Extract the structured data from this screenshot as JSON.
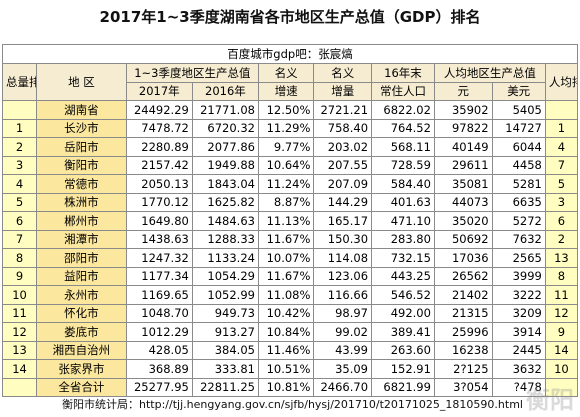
{
  "title": "2017年1~3季度湖南省各市地区生产总值（GDP）排名",
  "source_note": "百度城市gdp吧：张宸熇",
  "headers": {
    "rank": "总量排名",
    "region": "地 区",
    "gdp_group": "1~3季度地区生产总值",
    "y2017": "2017年",
    "y2016": "2016年",
    "nominal_growth_top": "名义",
    "nominal_growth_bottom": "增速",
    "nominal_incr_top": "名义",
    "nominal_incr_bottom": "增量",
    "pop_top": "16年末",
    "pop_bottom": "常住人口",
    "percap_group": "人均地区生产总值",
    "yuan": "元",
    "usd": "美元",
    "percap_rank": "人均排名"
  },
  "rows": [
    {
      "rank": "",
      "name": "湖南省",
      "gdp2017": "24492.29",
      "gdp2016": "21771.08",
      "growth": "12.50%",
      "incr": "2721.21",
      "pop": "6822.02",
      "yuan": "35902",
      "usd": "5405",
      "pcrank": ""
    },
    {
      "rank": "1",
      "name": "长沙市",
      "gdp2017": "7478.72",
      "gdp2016": "6720.32",
      "growth": "11.29%",
      "incr": "758.40",
      "pop": "764.52",
      "yuan": "97822",
      "usd": "14727",
      "pcrank": "1"
    },
    {
      "rank": "2",
      "name": "岳阳市",
      "gdp2017": "2280.89",
      "gdp2016": "2077.86",
      "growth": "9.77%",
      "incr": "203.02",
      "pop": "568.11",
      "yuan": "40149",
      "usd": "6044",
      "pcrank": "4"
    },
    {
      "rank": "3",
      "name": "衡阳市",
      "gdp2017": "2157.42",
      "gdp2016": "1949.88",
      "growth": "10.64%",
      "incr": "207.55",
      "pop": "728.59",
      "yuan": "29611",
      "usd": "4458",
      "pcrank": "7"
    },
    {
      "rank": "4",
      "name": "常德市",
      "gdp2017": "2050.13",
      "gdp2016": "1843.04",
      "growth": "11.24%",
      "incr": "207.09",
      "pop": "584.40",
      "yuan": "35081",
      "usd": "5281",
      "pcrank": "5"
    },
    {
      "rank": "5",
      "name": "株洲市",
      "gdp2017": "1770.12",
      "gdp2016": "1625.82",
      "growth": "8.87%",
      "incr": "144.29",
      "pop": "401.63",
      "yuan": "44073",
      "usd": "6635",
      "pcrank": "3"
    },
    {
      "rank": "6",
      "name": "郴州市",
      "gdp2017": "1649.80",
      "gdp2016": "1484.63",
      "growth": "11.13%",
      "incr": "165.17",
      "pop": "471.10",
      "yuan": "35020",
      "usd": "5272",
      "pcrank": "6"
    },
    {
      "rank": "7",
      "name": "湘潭市",
      "gdp2017": "1438.63",
      "gdp2016": "1288.33",
      "growth": "11.67%",
      "incr": "150.30",
      "pop": "283.80",
      "yuan": "50692",
      "usd": "7632",
      "pcrank": "2"
    },
    {
      "rank": "8",
      "name": "邵阳市",
      "gdp2017": "1247.32",
      "gdp2016": "1133.24",
      "growth": "10.07%",
      "incr": "114.08",
      "pop": "732.15",
      "yuan": "17036",
      "usd": "2565",
      "pcrank": "13"
    },
    {
      "rank": "9",
      "name": "益阳市",
      "gdp2017": "1177.34",
      "gdp2016": "1054.29",
      "growth": "11.67%",
      "incr": "123.06",
      "pop": "443.25",
      "yuan": "26562",
      "usd": "3999",
      "pcrank": "8"
    },
    {
      "rank": "10",
      "name": "永州市",
      "gdp2017": "1169.65",
      "gdp2016": "1052.99",
      "growth": "11.08%",
      "incr": "116.66",
      "pop": "546.52",
      "yuan": "21402",
      "usd": "3222",
      "pcrank": "11"
    },
    {
      "rank": "11",
      "name": "怀化市",
      "gdp2017": "1048.70",
      "gdp2016": "949.73",
      "growth": "10.42%",
      "incr": "98.97",
      "pop": "492.00",
      "yuan": "21315",
      "usd": "3209",
      "pcrank": "12"
    },
    {
      "rank": "12",
      "name": "娄底市",
      "gdp2017": "1012.29",
      "gdp2016": "913.27",
      "growth": "10.84%",
      "incr": "99.02",
      "pop": "389.41",
      "yuan": "25996",
      "usd": "3914",
      "pcrank": "9"
    },
    {
      "rank": "13",
      "name": "湘西自治州",
      "gdp2017": "428.05",
      "gdp2016": "384.05",
      "growth": "11.46%",
      "incr": "43.99",
      "pop": "263.60",
      "yuan": "16238",
      "usd": "2445",
      "pcrank": "14"
    },
    {
      "rank": "14",
      "name": "张家界市",
      "gdp2017": "368.89",
      "gdp2016": "333.81",
      "growth": "10.51%",
      "incr": "35.09",
      "pop": "152.91",
      "yuan": "2?125",
      "usd": "3632",
      "pcrank": "10"
    },
    {
      "rank": "",
      "name": "全省合计",
      "gdp2017": "25277.95",
      "gdp2016": "22811.25",
      "growth": "10.81%",
      "incr": "2466.70",
      "pop": "6821.99",
      "yuan": "3?054",
      "usd": "?478",
      "pcrank": ""
    }
  ],
  "footer": "衡阳市统计局：http://tjj.hengyang.gov.cn/sjfb/hysj/201710/t20171025_1810590.html",
  "watermark": "衡阳"
}
